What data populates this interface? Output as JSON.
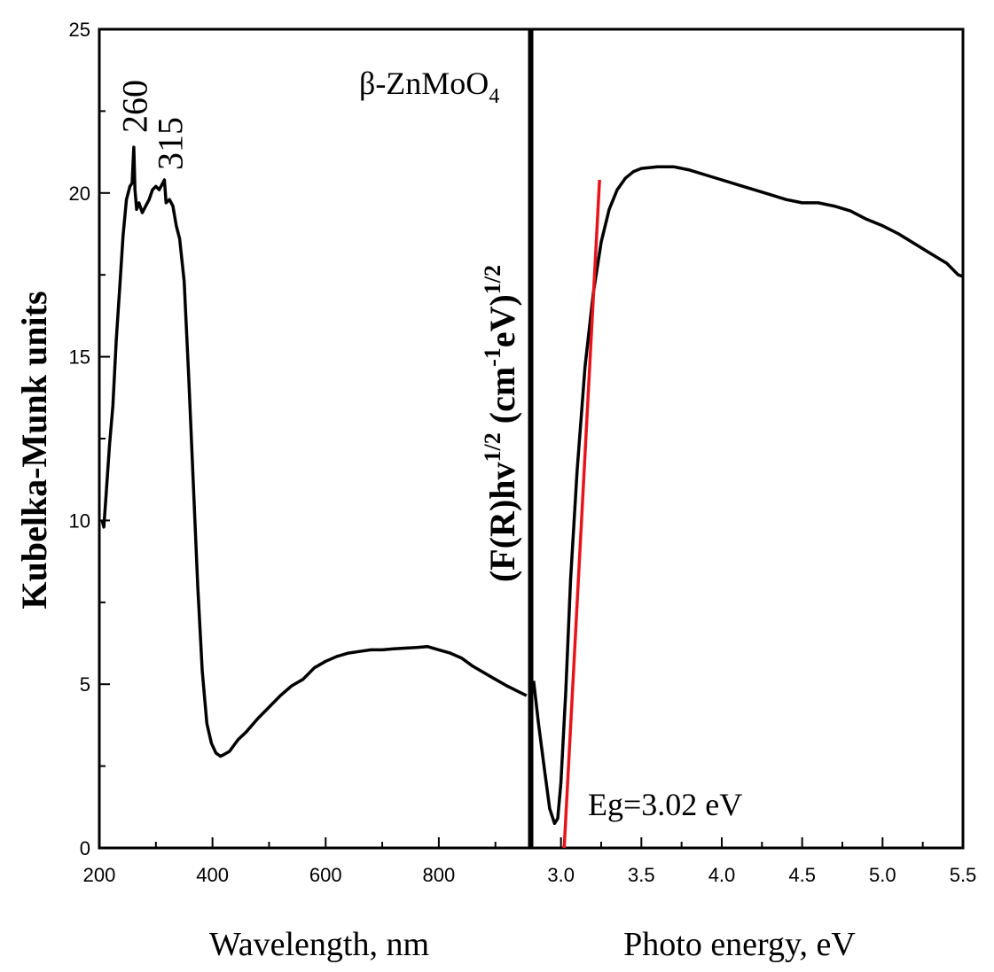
{
  "chart_data": [
    {
      "type": "line",
      "name": "absorption-spectrum",
      "xlabel": "Wavelength, nm",
      "ylabel": "Kubelka-Munk units",
      "xlim": [
        200,
        960
      ],
      "ylim": [
        0,
        25
      ],
      "xticks": [
        200,
        400,
        600,
        800
      ],
      "xtick_labels": [
        "200",
        "400",
        "600",
        "800"
      ],
      "yticks": [
        0,
        5,
        10,
        15,
        20,
        25
      ],
      "ytick_labels": [
        "0",
        "5",
        "10",
        "15",
        "20",
        "25"
      ],
      "series": [
        {
          "name": "β-ZnMoO4",
          "x": [
            205,
            208,
            212,
            218,
            224,
            230,
            236,
            242,
            248,
            254,
            258,
            261,
            263,
            266,
            270,
            276,
            282,
            288,
            294,
            300,
            306,
            312,
            315,
            318,
            324,
            330,
            336,
            342,
            350,
            358,
            366,
            374,
            382,
            390,
            398,
            406,
            414,
            420,
            430,
            445,
            460,
            480,
            500,
            520,
            540,
            560,
            580,
            600,
            620,
            640,
            660,
            680,
            700,
            720,
            740,
            760,
            780,
            800,
            820,
            840,
            860,
            880,
            900,
            920,
            940,
            955
          ],
          "y": [
            10.0,
            9.8,
            10.8,
            12.3,
            13.5,
            15.5,
            17.1,
            18.7,
            19.8,
            20.2,
            20.3,
            21.4,
            20.1,
            19.5,
            19.7,
            19.4,
            19.6,
            19.8,
            20.1,
            20.2,
            20.1,
            20.3,
            20.4,
            19.7,
            19.8,
            19.6,
            19.0,
            18.6,
            17.3,
            14.4,
            11.2,
            8.0,
            5.4,
            3.8,
            3.2,
            2.9,
            2.8,
            2.85,
            2.95,
            3.3,
            3.55,
            3.95,
            4.3,
            4.65,
            4.95,
            5.15,
            5.5,
            5.7,
            5.85,
            5.95,
            6.0,
            6.05,
            6.05,
            6.08,
            6.1,
            6.12,
            6.15,
            6.05,
            5.95,
            5.8,
            5.55,
            5.35,
            5.15,
            4.95,
            4.78,
            4.65
          ]
        }
      ],
      "annotations": [
        {
          "text": "260",
          "x": 262
        },
        {
          "text": "315",
          "x": 315
        }
      ]
    },
    {
      "type": "line",
      "name": "tauc-plot",
      "xlabel": "Photo energy, eV",
      "ylabel_parts": [
        "(F(R)hv",
        "1/2",
        " (cm",
        "-1",
        "eV)",
        "1/2"
      ],
      "xlim": [
        2.82,
        5.5
      ],
      "ylim": [
        0,
        25
      ],
      "xticks": [
        3.0,
        3.5,
        4.0,
        4.5,
        5.0,
        5.5
      ],
      "xtick_labels": [
        "3.0",
        "3.5",
        "4.0",
        "4.5",
        "5.0",
        "5.5"
      ],
      "series": [
        {
          "name": "tauc-curve",
          "x": [
            2.83,
            2.86,
            2.9,
            2.93,
            2.96,
            2.98,
            3.0,
            3.03,
            3.06,
            3.1,
            3.15,
            3.2,
            3.25,
            3.3,
            3.35,
            3.4,
            3.45,
            3.5,
            3.6,
            3.7,
            3.8,
            3.9,
            4.0,
            4.1,
            4.2,
            4.3,
            4.4,
            4.5,
            4.6,
            4.7,
            4.8,
            4.9,
            5.0,
            5.1,
            5.2,
            5.3,
            5.4,
            5.47,
            5.5
          ],
          "y": [
            5.1,
            3.8,
            2.3,
            1.2,
            0.75,
            0.9,
            2.0,
            4.8,
            8.2,
            11.5,
            14.7,
            16.9,
            18.5,
            19.5,
            20.1,
            20.45,
            20.65,
            20.75,
            20.8,
            20.8,
            20.7,
            20.55,
            20.4,
            20.25,
            20.1,
            19.95,
            19.8,
            19.7,
            19.7,
            19.6,
            19.45,
            19.2,
            19.0,
            18.75,
            18.45,
            18.15,
            17.85,
            17.5,
            17.45
          ]
        },
        {
          "name": "linear-fit",
          "x": [
            3.02,
            3.24
          ],
          "y": [
            0,
            20.4
          ]
        }
      ],
      "annotations": [
        {
          "text": "Eg=3.02 eV"
        }
      ]
    }
  ],
  "labels": {
    "compound_prefix": "β-ZnMoO",
    "compound_subscript": "4"
  },
  "colors": {
    "curve": "#000000",
    "fit_line": "#e8141b"
  }
}
